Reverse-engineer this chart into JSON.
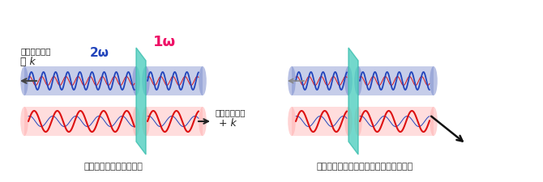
{
  "title_left": "通常の第二次高調波発生",
  "title_right": "今回発見した非対称な第二次高調波発生",
  "label_2omega": "2ω",
  "label_1omega": "1ω",
  "label_dir_left": "光の進行方向",
  "label_minus_k": "－ k",
  "label_dir_right": "光の進行方向",
  "label_plus_k": "+ k",
  "bg_color": "#ffffff",
  "beam_blue_color": "#7788cc",
  "beam_pink_color": "#ffaaaa",
  "wave_blue_color": "#2244bb",
  "wave_red_color": "#dd1111",
  "crystal_color": "#44ccbb",
  "text_2omega_color": "#2244bb",
  "text_1omega_color": "#ee1166",
  "figsize": [
    6.7,
    2.26
  ],
  "dpi": 100
}
